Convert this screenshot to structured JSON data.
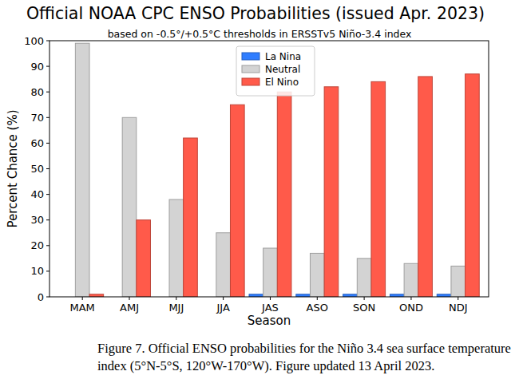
{
  "chart_data": {
    "type": "bar",
    "title": "Official NOAA CPC ENSO Probabilities (issued Apr. 2023)",
    "subtitle": "based on -0.5°/+0.5°C thresholds in ERSSTv5 Niño-3.4 index",
    "x_label": "Season",
    "y_label": "Percent Chance (%)",
    "caption": [
      "Figure 7. Official ENSO probabilities for the Niño 3.4 sea surface temperature",
      "index (5°N-5°S, 120°W-170°W). Figure updated 13 April 2023."
    ],
    "categories": [
      "MAM",
      "AMJ",
      "MJJ",
      "JJA",
      "JAS",
      "ASO",
      "SON",
      "OND",
      "NDJ"
    ],
    "series": [
      {
        "name": "La Nina",
        "color": "#2f7dff",
        "values": [
          0,
          0,
          0,
          0,
          1,
          1,
          1,
          1,
          1
        ]
      },
      {
        "name": "Neutral",
        "color": "#d3d3d3",
        "values": [
          99,
          70,
          38,
          25,
          19,
          17,
          15,
          13,
          12
        ]
      },
      {
        "name": "El Nino",
        "color": "#ff5a4a",
        "values": [
          1,
          30,
          62,
          75,
          80,
          82,
          84,
          86,
          87
        ]
      }
    ],
    "ylim": [
      0,
      100
    ],
    "yticks": [
      0,
      10,
      20,
      30,
      40,
      50,
      60,
      70,
      80,
      90,
      100
    ],
    "grid": false,
    "legend": "upper center"
  }
}
